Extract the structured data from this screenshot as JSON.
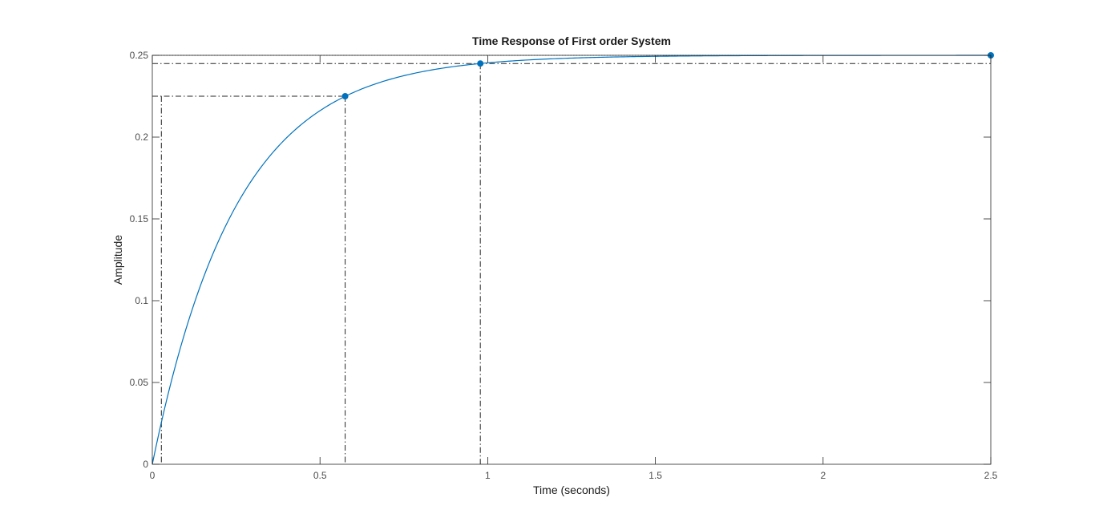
{
  "chart_data": {
    "type": "line",
    "title": "Time Response of First order System",
    "xlabel": "Time (seconds)",
    "ylabel": "Amplitude",
    "xlim": [
      0,
      2.5
    ],
    "ylim": [
      0,
      0.25
    ],
    "xticks": [
      "0",
      "0.5",
      "1",
      "1.5",
      "2",
      "2.5"
    ],
    "yticks": [
      "0",
      "0.05",
      "0.1",
      "0.15",
      "0.2",
      "0.25"
    ],
    "grid": false,
    "series": [
      {
        "type": "step-response",
        "final_value": 0.25,
        "time_constant": 0.25,
        "t_end": 2.5,
        "color": "#0072bd"
      }
    ],
    "markers": [
      {
        "x": 0.575,
        "y": 0.225
      },
      {
        "x": 0.978,
        "y": 0.245
      },
      {
        "x": 2.5,
        "y": 0.25
      }
    ],
    "characteristic_lines": {
      "rise_time": {
        "t_start": 0.027,
        "t_end": 0.575,
        "y_low": 0.025,
        "y_high": 0.225
      },
      "settling_time": {
        "t": 0.978,
        "y": 0.245
      },
      "steady_state": {
        "y": 0.25
      }
    },
    "colors": {
      "line": "#0072bd",
      "guide": "#262626",
      "axes": "#262626"
    }
  }
}
